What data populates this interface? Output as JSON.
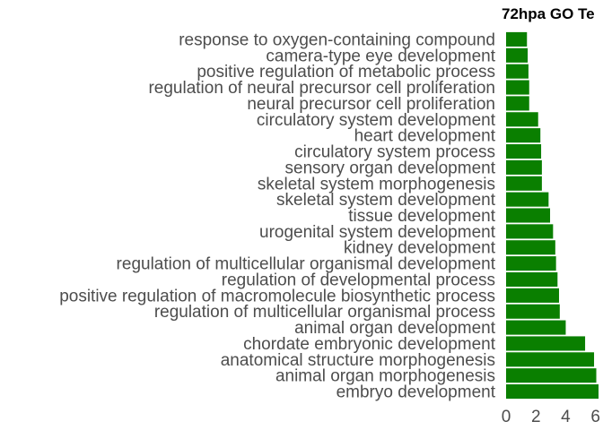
{
  "chart_data": {
    "type": "bar",
    "orientation": "horizontal",
    "title": "72hpa GO Te",
    "xlabel": "",
    "ylabel": "",
    "xlim": [
      0,
      6.5
    ],
    "xticks": [
      0,
      2,
      4,
      6
    ],
    "grid": false,
    "bar_color": "#0a7f00",
    "categories": [
      "response to oxygen-containing compound",
      "camera-type eye development",
      "positive regulation of metabolic process",
      "regulation of neural precursor cell proliferation",
      "neural precursor cell proliferation",
      "circulatory system development",
      "heart development",
      "circulatory system process",
      "sensory organ development",
      "skeletal system morphogenesis",
      "skeletal system development",
      "tissue development",
      "urogenital system development",
      "kidney development",
      "regulation of multicellular organismal development",
      "regulation of developmental process",
      "positive regulation of macromolecule biosynthetic process",
      "regulation of multicellular organismal process",
      "animal organ development",
      "chordate embryonic development",
      "anatomical structure morphogenesis",
      "animal organ morphogenesis",
      "embryo development"
    ],
    "values": [
      1.4,
      1.45,
      1.5,
      1.55,
      1.55,
      2.15,
      2.3,
      2.35,
      2.4,
      2.4,
      2.85,
      2.95,
      3.15,
      3.3,
      3.35,
      3.45,
      3.55,
      3.6,
      4.0,
      5.3,
      5.9,
      6.05,
      6.2
    ]
  }
}
